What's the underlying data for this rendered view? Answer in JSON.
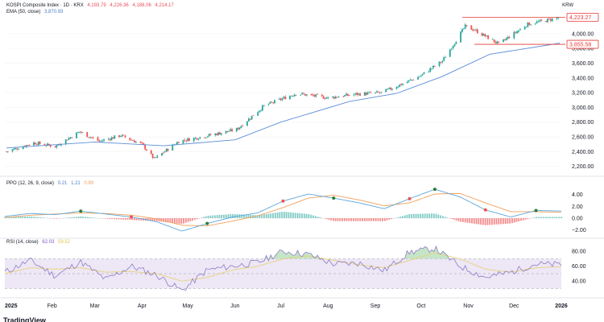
{
  "header": {
    "title": "KOSPI Composite Index · 1D · KRX",
    "ohlc": [
      "4,193.79",
      "4,226.36",
      "4,188.06",
      "4,214.17"
    ],
    "currency": "KRW"
  },
  "indicators": {
    "ema_label": "EMA (50, close)",
    "ema_value": "3,870.93",
    "ppo_label": "PPO (12, 26, 9, close)",
    "ppo_values": [
      "0.21",
      "1.21",
      "0.99"
    ],
    "rsi_label": "RSI (14, close)",
    "rsi_values": [
      "62.03",
      "59.52"
    ]
  },
  "colors": {
    "up": "#26a69a",
    "down": "#ef5350",
    "ema": "#5b8dd6",
    "ppo_line": "#5aa6dc",
    "ppo_signal": "#f0a05a",
    "rsi": "#8e7cc3",
    "rsi_ma": "#e8d27a",
    "rsi_band": "#ede7f6",
    "level_line": "#e53935"
  },
  "chart_data": [
    {
      "type": "candlestick",
      "title": "KOSPI Composite Index · 1D · KRX",
      "x_tick_labels": [
        "2025",
        "Feb",
        "Mar",
        "Apr",
        "May",
        "Jun",
        "Jul",
        "Aug",
        "Sep",
        "Oct",
        "Nov",
        "Dec",
        "2026"
      ],
      "y_tick_labels": [
        "4,000.00",
        "3,800.00",
        "3,600.00",
        "3,400.00",
        "3,200.00",
        "3,000.00",
        "2,800.00",
        "2,600.00",
        "2,400.00",
        "2,200.00"
      ],
      "ylim": [
        2120,
        4260
      ],
      "price_labels": [
        "4,223.27",
        "3,855.58"
      ],
      "horizontal_levels": [
        4223.27,
        3855.58
      ],
      "closes_by_month_start": [
        {
          "x": "2025-01-02",
          "y": 2400
        },
        {
          "x": "2025-01-20",
          "y": 2520
        },
        {
          "x": "2025-02-03",
          "y": 2470
        },
        {
          "x": "2025-02-19",
          "y": 2670
        },
        {
          "x": "2025-03-04",
          "y": 2540
        },
        {
          "x": "2025-03-18",
          "y": 2620
        },
        {
          "x": "2025-04-01",
          "y": 2500
        },
        {
          "x": "2025-04-09",
          "y": 2300
        },
        {
          "x": "2025-04-25",
          "y": 2540
        },
        {
          "x": "2025-05-15",
          "y": 2620
        },
        {
          "x": "2025-06-02",
          "y": 2700
        },
        {
          "x": "2025-06-20",
          "y": 3020
        },
        {
          "x": "2025-07-11",
          "y": 3190
        },
        {
          "x": "2025-08-01",
          "y": 3130
        },
        {
          "x": "2025-08-20",
          "y": 3180
        },
        {
          "x": "2025-09-05",
          "y": 3200
        },
        {
          "x": "2025-09-30",
          "y": 3420
        },
        {
          "x": "2025-10-15",
          "y": 3630
        },
        {
          "x": "2025-10-30",
          "y": 4100
        },
        {
          "x": "2025-11-05",
          "y": 4050
        },
        {
          "x": "2025-11-21",
          "y": 3860
        },
        {
          "x": "2025-12-10",
          "y": 4130
        },
        {
          "x": "2025-12-30",
          "y": 4214
        }
      ],
      "ema_50": [
        {
          "x": "2025-01-02",
          "y": 2450
        },
        {
          "x": "2025-03-01",
          "y": 2530
        },
        {
          "x": "2025-04-15",
          "y": 2480
        },
        {
          "x": "2025-06-01",
          "y": 2560
        },
        {
          "x": "2025-07-01",
          "y": 2800
        },
        {
          "x": "2025-08-15",
          "y": 3080
        },
        {
          "x": "2025-09-15",
          "y": 3190
        },
        {
          "x": "2025-10-15",
          "y": 3420
        },
        {
          "x": "2025-11-15",
          "y": 3720
        },
        {
          "x": "2025-12-31",
          "y": 3871
        }
      ]
    },
    {
      "type": "line",
      "title": "PPO (12, 26, 9, close)",
      "y_tick_labels": [
        "4.00",
        "2.00",
        "0.00",
        "−2.00"
      ],
      "ylim": [
        -3,
        5.6
      ],
      "series": [
        {
          "name": "PPO",
          "values": [
            0.3,
            0.8,
            0.6,
            1.2,
            0.7,
            0.2,
            -0.6,
            -2.2,
            -0.9,
            0.2,
            0.9,
            2.9,
            4.1,
            3.4,
            2.6,
            1.6,
            3.3,
            4.9,
            3.6,
            1.4,
            0.2,
            1.3,
            1.21
          ]
        },
        {
          "name": "Signal",
          "values": [
            0.1,
            0.5,
            0.7,
            0.9,
            0.8,
            0.5,
            -0.1,
            -1.2,
            -1.3,
            -0.5,
            0.4,
            1.8,
            3.4,
            3.9,
            3.1,
            2.1,
            2.6,
            4.1,
            4.2,
            2.6,
            1.1,
            1.1,
            0.99
          ]
        }
      ],
      "histogram_last": 0.21
    },
    {
      "type": "line",
      "title": "RSI (14, close)",
      "y_tick_labels": [
        "80.00",
        "60.00",
        "40.00"
      ],
      "ylim": [
        24,
        90
      ],
      "bands": [
        30,
        50,
        70
      ],
      "series": [
        {
          "name": "RSI",
          "values": [
            52,
            68,
            47,
            66,
            42,
            60,
            48,
            27,
            55,
            60,
            65,
            80,
            76,
            63,
            64,
            54,
            79,
            84,
            60,
            45,
            52,
            63,
            62.03
          ]
        },
        {
          "name": "RSI MA",
          "values": [
            50,
            58,
            56,
            58,
            52,
            53,
            50,
            40,
            45,
            55,
            60,
            70,
            74,
            68,
            62,
            58,
            68,
            78,
            70,
            56,
            52,
            58,
            59.52
          ]
        }
      ]
    }
  ]
}
